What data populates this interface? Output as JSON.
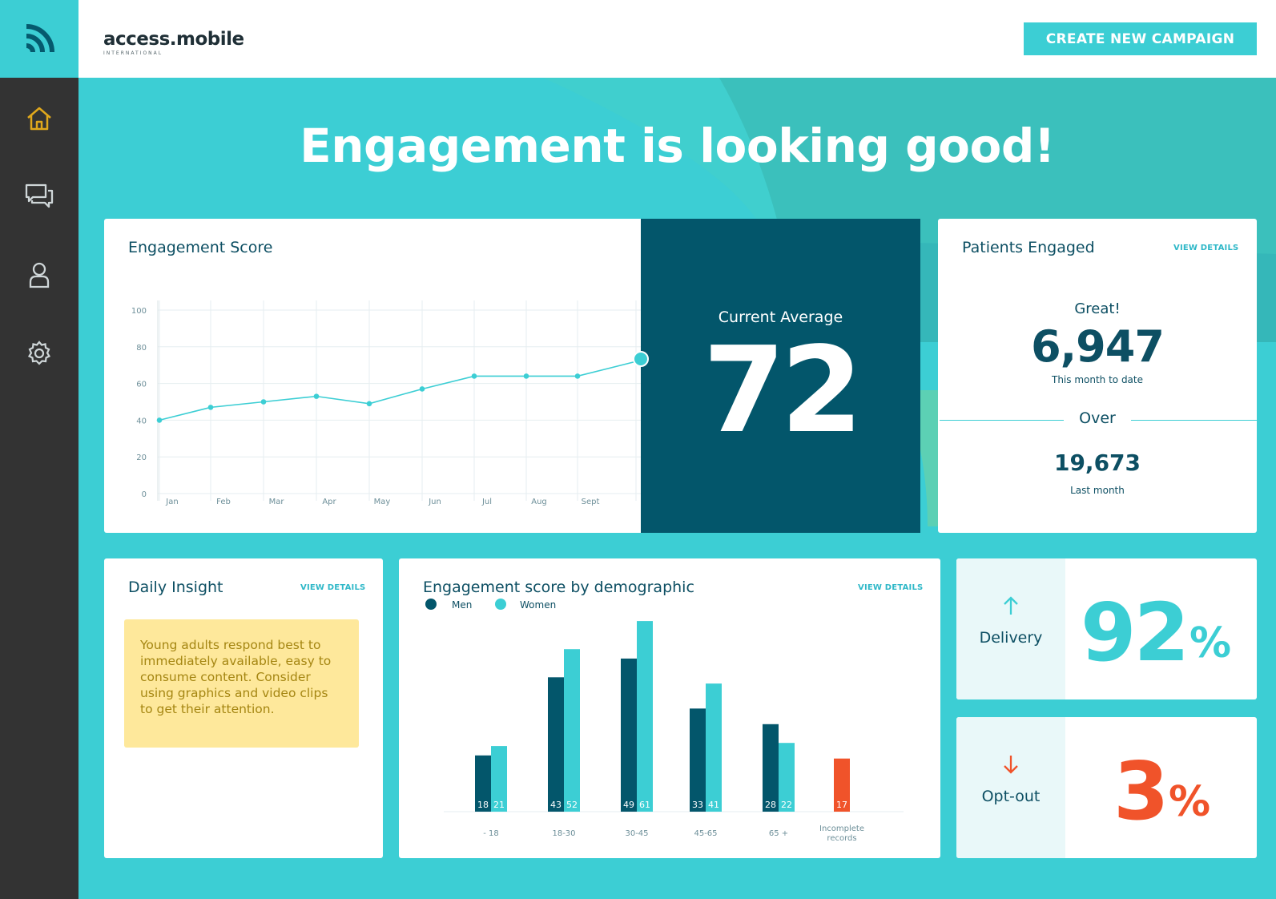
{
  "header": {
    "brand_name": "access.mobile",
    "brand_sub": "INTERNATIONAL",
    "cta_label": "CREATE NEW CAMPAIGN"
  },
  "sidebar": {
    "items": [
      {
        "icon": "home-icon",
        "active": true
      },
      {
        "icon": "chat-icon",
        "active": false
      },
      {
        "icon": "user-icon",
        "active": false
      },
      {
        "icon": "gear-icon",
        "active": false
      }
    ]
  },
  "hero": {
    "title": "Engagement is looking good!"
  },
  "engagement_score": {
    "title": "Engagement Score",
    "current_average_label": "Current Average",
    "current_average": "72"
  },
  "patients_engaged": {
    "title": "Patients Engaged",
    "view_details": "VIEW DETAILS",
    "great": "Great!",
    "this_month_value": "6,947",
    "this_month_label": "This month to date",
    "over": "Over",
    "last_month_value": "19,673",
    "last_month_label": "Last month"
  },
  "daily_insight": {
    "title": "Daily Insight",
    "view_details": "VIEW DETAILS",
    "text": "Young adults respond best to immediately available, easy to consume content. Consider using graphics and video clips to get their attention."
  },
  "demographic": {
    "title": "Engagement score by demographic",
    "view_details": "VIEW DETAILS"
  },
  "delivery": {
    "label": "Delivery",
    "value": "92",
    "unit": "%"
  },
  "optout": {
    "label": "Opt-out",
    "value": "3",
    "unit": "%"
  },
  "colors": {
    "teal": "#3cced4",
    "dark_teal": "#03566b",
    "navy_text": "#0d4f63",
    "orange": "#f0532a",
    "insight_bg": "#fee89b"
  },
  "chart_data": [
    {
      "type": "line",
      "title": "Engagement Score",
      "x": [
        "Jan",
        "Feb",
        "Mar",
        "Apr",
        "May",
        "Jun",
        "Jul",
        "Aug",
        "Sept",
        ""
      ],
      "y_ticks": [
        "100",
        "80",
        "60",
        "40",
        "20",
        "0"
      ],
      "values": [
        40,
        47,
        50,
        53,
        49,
        57,
        64,
        64,
        64,
        72
      ],
      "ylim": [
        0,
        100
      ],
      "grid": true
    },
    {
      "type": "bar",
      "title": "Engagement score by demographic",
      "legend": [
        "Men",
        "Women"
      ],
      "legend_position": "top-left",
      "categories": [
        "- 18",
        "18-30",
        "30-45",
        "45-65",
        "65 +",
        "Incomplete records"
      ],
      "series": [
        {
          "name": "Men",
          "values": [
            18,
            43,
            49,
            33,
            28,
            null
          ]
        },
        {
          "name": "Women",
          "values": [
            21,
            52,
            61,
            41,
            22,
            null
          ]
        },
        {
          "name": "",
          "values": [
            null,
            null,
            null,
            null,
            null,
            17
          ]
        }
      ]
    }
  ]
}
